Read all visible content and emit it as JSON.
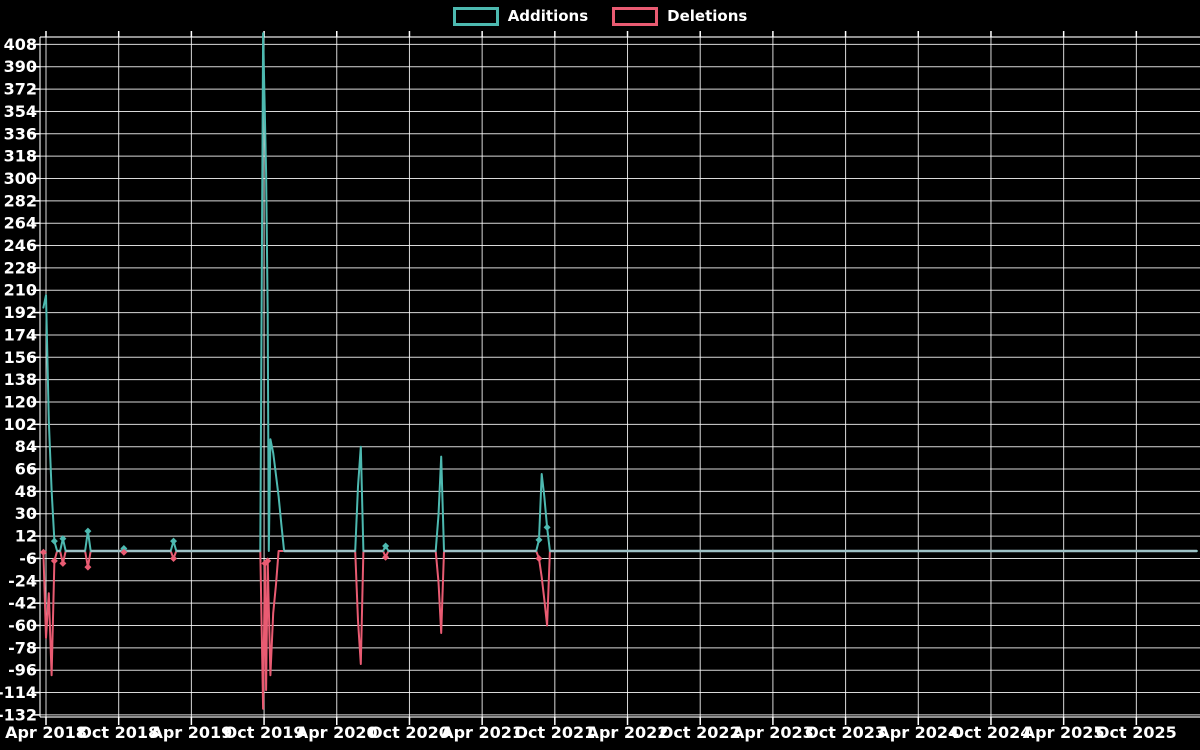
{
  "legend": {
    "items": [
      {
        "label": "Additions",
        "color": "#4DB9B0"
      },
      {
        "label": "Deletions",
        "color": "#E95B72"
      }
    ]
  },
  "chart_data": {
    "type": "line",
    "title": "",
    "xlabel": "",
    "ylabel": "",
    "grid": true,
    "legend_position": "top-center",
    "background_color": "#000000",
    "grid_color": "#FFFFFF",
    "text_color": "#FFFFFF",
    "zero_line_color": "#9EC2C6",
    "ylim": [
      -132,
      408
    ],
    "y_tick_step": 18,
    "y_ticks": [
      408,
      390,
      372,
      354,
      336,
      318,
      300,
      282,
      264,
      246,
      228,
      210,
      192,
      174,
      156,
      138,
      120,
      102,
      84,
      66,
      48,
      30,
      12,
      -6,
      -24,
      -42,
      -60,
      -78,
      -96,
      -114,
      -132
    ],
    "x_tick_labels": [
      "Apr 2018",
      "Oct 2018",
      "Apr 2019",
      "Oct 2019",
      "Apr 2020",
      "Oct 2020",
      "Apr 2021",
      "Oct 2021",
      "Apr 2022",
      "Oct 2022",
      "Apr 2023",
      "Oct 2023",
      "Apr 2024",
      "Oct 2024",
      "Apr 2025",
      "Oct 2025"
    ],
    "x_tick_dates": [
      "2018-04-01",
      "2018-10-01",
      "2019-04-01",
      "2019-10-01",
      "2020-04-01",
      "2020-10-01",
      "2021-04-01",
      "2021-10-01",
      "2022-04-01",
      "2022-10-01",
      "2023-04-01",
      "2023-10-01",
      "2024-04-01",
      "2024-10-01",
      "2025-04-01",
      "2025-10-01"
    ],
    "series": [
      {
        "name": "Additions",
        "color": "#4DB9B0",
        "points": [
          [
            "2018-03-25",
            196
          ],
          [
            "2018-04-01",
            206
          ],
          [
            "2018-04-08",
            105
          ],
          [
            "2018-04-15",
            49
          ],
          [
            "2018-04-22",
            8
          ],
          [
            "2018-04-29",
            0
          ],
          [
            "2018-05-06",
            0
          ],
          [
            "2018-05-13",
            10
          ],
          [
            "2018-05-20",
            0
          ],
          [
            "2018-07-08",
            0
          ],
          [
            "2018-07-15",
            16
          ],
          [
            "2018-07-22",
            0
          ],
          [
            "2018-10-07",
            0
          ],
          [
            "2018-10-14",
            2
          ],
          [
            "2018-10-21",
            0
          ],
          [
            "2019-02-10",
            0
          ],
          [
            "2019-02-17",
            8
          ],
          [
            "2019-02-24",
            0
          ],
          [
            "2019-09-22",
            0
          ],
          [
            "2019-09-29",
            417
          ],
          [
            "2019-10-06",
            305
          ],
          [
            "2019-10-10",
            192
          ],
          [
            "2019-10-13",
            0
          ],
          [
            "2019-10-17",
            90
          ],
          [
            "2019-10-24",
            79
          ],
          [
            "2019-10-31",
            61
          ],
          [
            "2019-11-07",
            44
          ],
          [
            "2019-11-14",
            21
          ],
          [
            "2019-11-21",
            0
          ],
          [
            "2020-05-17",
            0
          ],
          [
            "2020-05-24",
            52
          ],
          [
            "2020-05-31",
            84
          ],
          [
            "2020-06-07",
            0
          ],
          [
            "2020-07-26",
            0
          ],
          [
            "2020-08-02",
            4
          ],
          [
            "2020-08-09",
            0
          ],
          [
            "2020-12-06",
            0
          ],
          [
            "2020-12-13",
            29
          ],
          [
            "2020-12-20",
            76
          ],
          [
            "2020-12-27",
            0
          ],
          [
            "2021-08-15",
            0
          ],
          [
            "2021-08-22",
            9
          ],
          [
            "2021-08-29",
            62
          ],
          [
            "2021-09-05",
            44
          ],
          [
            "2021-09-12",
            19
          ],
          [
            "2021-09-19",
            0
          ],
          [
            "2026-03-01",
            0
          ]
        ]
      },
      {
        "name": "Deletions",
        "color": "#E95B72",
        "points": [
          [
            "2018-03-25",
            -1
          ],
          [
            "2018-04-01",
            -70
          ],
          [
            "2018-04-08",
            -34
          ],
          [
            "2018-04-15",
            -100
          ],
          [
            "2018-04-22",
            -8
          ],
          [
            "2018-04-29",
            0
          ],
          [
            "2018-05-06",
            0
          ],
          [
            "2018-05-13",
            -10
          ],
          [
            "2018-05-20",
            0
          ],
          [
            "2018-07-08",
            0
          ],
          [
            "2018-07-15",
            -13
          ],
          [
            "2018-07-22",
            0
          ],
          [
            "2018-10-07",
            0
          ],
          [
            "2018-10-14",
            -1
          ],
          [
            "2018-10-21",
            0
          ],
          [
            "2019-02-10",
            0
          ],
          [
            "2019-02-17",
            -6
          ],
          [
            "2019-02-24",
            0
          ],
          [
            "2019-09-22",
            0
          ],
          [
            "2019-09-29",
            -127
          ],
          [
            "2019-10-03",
            -10
          ],
          [
            "2019-10-06",
            -112
          ],
          [
            "2019-10-10",
            -8
          ],
          [
            "2019-10-17",
            -100
          ],
          [
            "2019-10-24",
            -50
          ],
          [
            "2019-10-31",
            -27
          ],
          [
            "2019-11-07",
            0
          ],
          [
            "2020-05-17",
            0
          ],
          [
            "2020-05-24",
            -56
          ],
          [
            "2020-05-31",
            -91
          ],
          [
            "2020-06-07",
            0
          ],
          [
            "2020-07-26",
            0
          ],
          [
            "2020-08-02",
            -5
          ],
          [
            "2020-08-09",
            0
          ],
          [
            "2020-12-06",
            0
          ],
          [
            "2020-12-13",
            -25
          ],
          [
            "2020-12-20",
            -66
          ],
          [
            "2020-12-27",
            0
          ],
          [
            "2021-08-15",
            0
          ],
          [
            "2021-08-22",
            -6
          ],
          [
            "2021-08-29",
            -21
          ],
          [
            "2021-09-05",
            -39
          ],
          [
            "2021-09-12",
            -60
          ],
          [
            "2021-09-19",
            0
          ],
          [
            "2026-03-01",
            0
          ]
        ]
      }
    ]
  }
}
